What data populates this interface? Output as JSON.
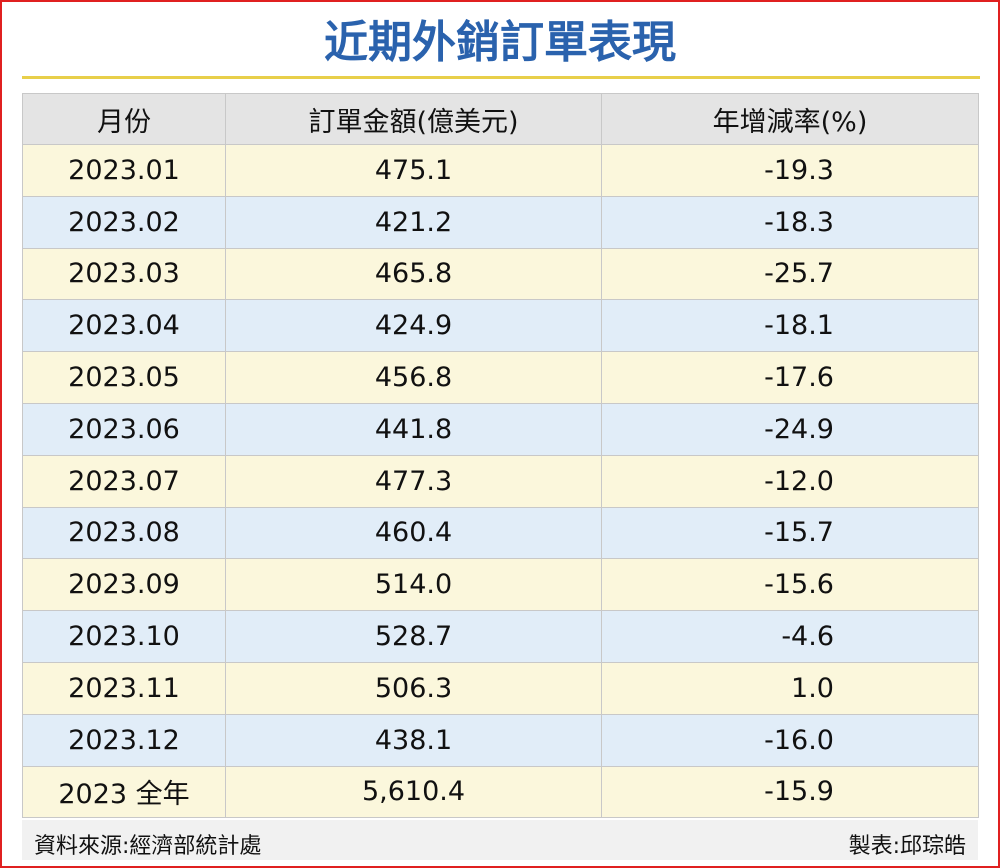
{
  "header": {
    "title": "近期外銷訂單表現"
  },
  "table": {
    "columns": [
      "月份",
      "訂單金額(億美元)",
      "年增減率(%)"
    ],
    "rows": [
      [
        "2023.01",
        "475.1",
        "-19.3"
      ],
      [
        "2023.02",
        "421.2",
        "-18.3"
      ],
      [
        "2023.03",
        "465.8",
        "-25.7"
      ],
      [
        "2023.04",
        "424.9",
        "-18.1"
      ],
      [
        "2023.05",
        "456.8",
        "-17.6"
      ],
      [
        "2023.06",
        "441.8",
        "-24.9"
      ],
      [
        "2023.07",
        "477.3",
        "-12.0"
      ],
      [
        "2023.08",
        "460.4",
        "-15.7"
      ],
      [
        "2023.09",
        "514.0",
        "-15.6"
      ],
      [
        "2023.10",
        "528.7",
        "-4.6"
      ],
      [
        "2023.11",
        "506.3",
        "1.0"
      ],
      [
        "2023.12",
        "438.1",
        "-16.0"
      ],
      [
        "2023 全年",
        "5,610.4",
        "-15.9"
      ]
    ]
  },
  "footer": {
    "source": "資料來源:經濟部統計處",
    "credit": "製表:邱琮皓"
  }
}
